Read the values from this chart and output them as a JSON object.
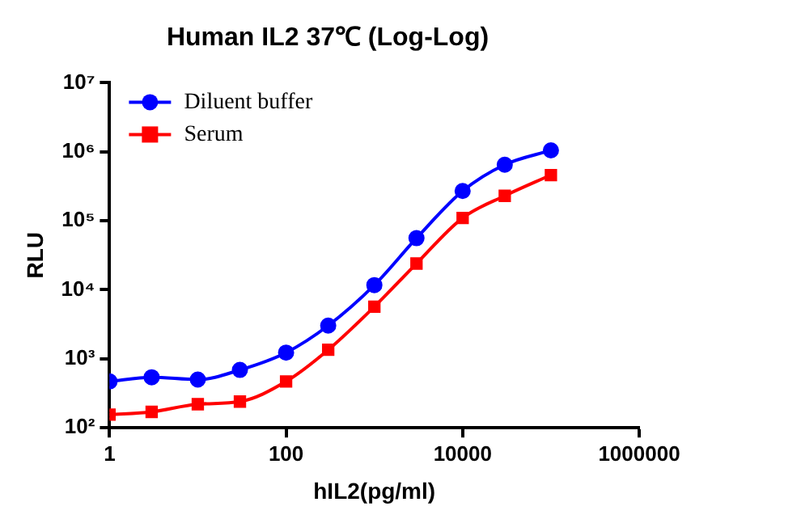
{
  "chart_data": {
    "type": "line",
    "title": "Human IL2 37℃ (Log-Log)",
    "xlabel": "hIL2(pg/ml)",
    "ylabel": "RLU",
    "x": [
      1,
      3,
      10,
      30,
      100,
      300,
      1000,
      3000,
      10000,
      30000,
      100000
    ],
    "series": [
      {
        "name": "Diluent buffer",
        "color": "#0000ff",
        "marker": "circle",
        "values": [
          470,
          540,
          500,
          690,
          1230,
          3030,
          11700,
          56000,
          270000,
          650000,
          1050000
        ]
      },
      {
        "name": "Serum",
        "color": "#ff0000",
        "marker": "square",
        "values": [
          155,
          170,
          220,
          240,
          470,
          1350,
          5700,
          24000,
          110000,
          230000,
          460000
        ]
      }
    ],
    "log": "xy",
    "xlim": [
      1,
      1000000
    ],
    "xticks": [
      1,
      100,
      10000,
      1000000
    ],
    "ylim": [
      100,
      10000000
    ],
    "yticks": [
      {
        "value": 100,
        "label": "10²"
      },
      {
        "value": 1000,
        "label": "10³"
      },
      {
        "value": 10000,
        "label": "10⁴"
      },
      {
        "value": 100000,
        "label": "10⁵"
      },
      {
        "value": 1000000,
        "label": "10⁶"
      },
      {
        "value": 10000000,
        "label": "10⁷"
      }
    ],
    "grid": false,
    "legend": "top left",
    "line_style": "solid"
  }
}
